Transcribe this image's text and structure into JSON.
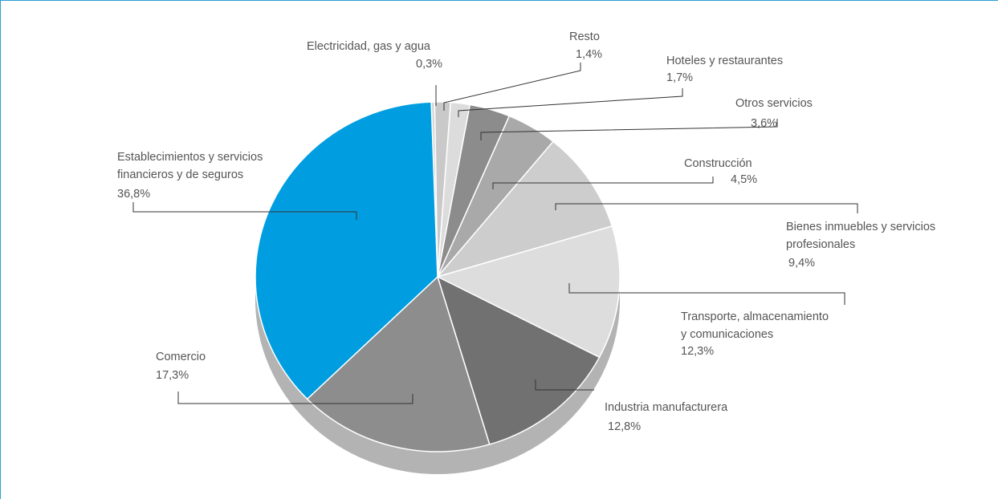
{
  "chart_data": {
    "type": "pie",
    "title": "",
    "colors": {
      "accent": "#009ee0",
      "frame": "#2a9fd6",
      "text": "#555555",
      "leader": "#333333"
    },
    "slices": [
      {
        "label_lines": [
          "Electricidad, gas y agua"
        ],
        "value": 0.3,
        "value_label": "0,3%",
        "color": "#d6d6d6"
      },
      {
        "label_lines": [
          "Resto"
        ],
        "value": 1.4,
        "value_label": "1,4%",
        "color": "#c9c9c9"
      },
      {
        "label_lines": [
          "Hoteles y restaurantes"
        ],
        "value": 1.7,
        "value_label": "1,7%",
        "color": "#dcdcdc"
      },
      {
        "label_lines": [
          "Otros servicios"
        ],
        "value": 3.6,
        "value_label": "3,6%",
        "color": "#8c8c8c"
      },
      {
        "label_lines": [
          "Construcción"
        ],
        "value": 4.5,
        "value_label": "4,5%",
        "color": "#a9a9a9"
      },
      {
        "label_lines": [
          "Bienes inmuebles y servicios",
          "profesionales"
        ],
        "value": 9.4,
        "value_label": "9,4%",
        "color": "#cdcdcd"
      },
      {
        "label_lines": [
          "Transporte, almacenamiento",
          "y comunicaciones"
        ],
        "value": 12.3,
        "value_label": "12,3%",
        "color": "#dddddd"
      },
      {
        "label_lines": [
          "Industria manufacturera"
        ],
        "value": 12.8,
        "value_label": "12,8%",
        "color": "#717171"
      },
      {
        "label_lines": [
          "Comercio"
        ],
        "value": 17.3,
        "value_label": "17,3%",
        "color": "#8d8d8d"
      },
      {
        "label_lines": [
          "Establecimientos y servicios",
          "financieros y de seguros"
        ],
        "value": 36.8,
        "value_label": "36,8%",
        "color": "#009ee0"
      }
    ]
  }
}
